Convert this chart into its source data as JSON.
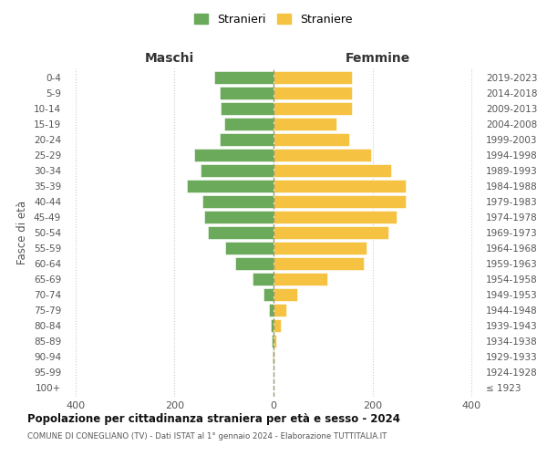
{
  "age_groups": [
    "100+",
    "95-99",
    "90-94",
    "85-89",
    "80-84",
    "75-79",
    "70-74",
    "65-69",
    "60-64",
    "55-59",
    "50-54",
    "45-49",
    "40-44",
    "35-39",
    "30-34",
    "25-29",
    "20-24",
    "15-19",
    "10-14",
    "5-9",
    "0-4"
  ],
  "birth_years": [
    "≤ 1923",
    "1924-1928",
    "1929-1933",
    "1934-1938",
    "1939-1943",
    "1944-1948",
    "1949-1953",
    "1954-1958",
    "1959-1963",
    "1964-1968",
    "1969-1973",
    "1974-1978",
    "1979-1983",
    "1984-1988",
    "1989-1993",
    "1994-1998",
    "1999-2003",
    "2004-2008",
    "2009-2013",
    "2014-2018",
    "2019-2023"
  ],
  "maschi": [
    0,
    0,
    1,
    3,
    6,
    9,
    20,
    43,
    78,
    98,
    132,
    140,
    143,
    175,
    148,
    160,
    108,
    100,
    107,
    108,
    120
  ],
  "femmine": [
    0,
    0,
    2,
    5,
    14,
    26,
    48,
    108,
    183,
    188,
    233,
    248,
    268,
    268,
    238,
    198,
    152,
    127,
    158,
    158,
    158
  ],
  "maschi_color": "#6aaa5a",
  "femmine_color": "#f5c242",
  "grid_color": "#cccccc",
  "center_line_color": "#999977",
  "title": "Popolazione per cittadinanza straniera per età e sesso - 2024",
  "subtitle": "COMUNE DI CONEGLIANO (TV) - Dati ISTAT al 1° gennaio 2024 - Elaborazione TUTTITALIA.IT",
  "label_maschi": "Maschi",
  "label_femmine": "Femmine",
  "ylabel_left": "Fasce di età",
  "legend_maschi": "Stranieri",
  "legend_femmine": "Straniere",
  "xlim": 420,
  "bar_height": 0.82,
  "xticks": [
    -400,
    -200,
    0,
    200,
    400
  ]
}
